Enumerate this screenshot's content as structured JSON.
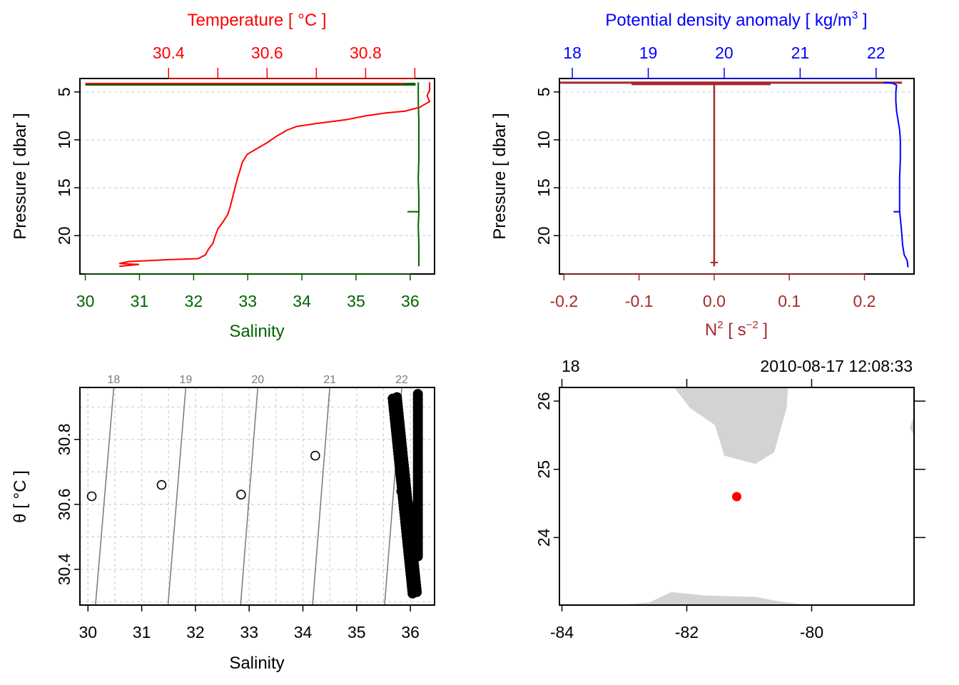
{
  "colors": {
    "temperature": "#ff0000",
    "salinity": "#006400",
    "density": "#0000ff",
    "n2": "#a52a2a",
    "land": "#d3d3d3",
    "station": "#ff0000",
    "isopycnal": "#808080"
  },
  "chart_data": [
    {
      "id": "ts_profile",
      "type": "line",
      "top_axis": {
        "title": "Temperature [ °C ]",
        "ticks": [
          "30.4",
          "30.6",
          "30.8"
        ],
        "tick_values": [
          30.4,
          30.5,
          30.6,
          30.7,
          30.8,
          30.9
        ],
        "range": [
          30.22,
          30.94
        ]
      },
      "bottom_axis": {
        "title": "Salinity",
        "ticks": [
          "30",
          "31",
          "32",
          "33",
          "34",
          "35",
          "36"
        ],
        "range": [
          29.9,
          36.45
        ]
      },
      "left_axis": {
        "title": "Pressure [ dbar ]",
        "ticks": [
          "5",
          "10",
          "15",
          "20"
        ],
        "range": [
          3.6,
          24.0
        ],
        "reversed": true
      },
      "series": [
        {
          "name": "Temperature",
          "points": [
            [
              30.93,
              4.0
            ],
            [
              30.93,
              4.8
            ],
            [
              30.925,
              5.4
            ],
            [
              30.93,
              6.0
            ],
            [
              30.91,
              6.6
            ],
            [
              30.88,
              7.0
            ],
            [
              30.84,
              7.2
            ],
            [
              30.8,
              7.5
            ],
            [
              30.76,
              7.9
            ],
            [
              30.7,
              8.3
            ],
            [
              30.66,
              8.6
            ],
            [
              30.64,
              9.0
            ],
            [
              30.62,
              9.6
            ],
            [
              30.6,
              10.3
            ],
            [
              30.58,
              10.9
            ],
            [
              30.56,
              11.5
            ],
            [
              30.55,
              12.3
            ],
            [
              30.545,
              13.2
            ],
            [
              30.54,
              14.0
            ],
            [
              30.535,
              15.0
            ],
            [
              30.53,
              16.0
            ],
            [
              30.525,
              17.0
            ],
            [
              30.52,
              17.8
            ],
            [
              30.51,
              18.6
            ],
            [
              30.5,
              19.3
            ],
            [
              30.495,
              20.0
            ],
            [
              30.49,
              20.8
            ],
            [
              30.48,
              21.5
            ],
            [
              30.475,
              22.0
            ],
            [
              30.46,
              22.4
            ],
            [
              30.4,
              22.5
            ],
            [
              30.36,
              22.6
            ],
            [
              30.32,
              22.7
            ],
            [
              30.3,
              22.9
            ],
            [
              30.34,
              23.0
            ],
            [
              30.3,
              23.2
            ]
          ]
        },
        {
          "name": "Salinity",
          "points": [
            [
              36.15,
              4.0
            ],
            [
              36.15,
              6.0
            ],
            [
              36.16,
              8.0
            ],
            [
              36.16,
              10.0
            ],
            [
              36.16,
              12.0
            ],
            [
              36.15,
              14.0
            ],
            [
              36.16,
              16.0
            ],
            [
              36.16,
              17.5
            ],
            [
              36.15,
              19.0
            ],
            [
              36.16,
              21.0
            ],
            [
              36.16,
              23.2
            ]
          ]
        }
      ]
    },
    {
      "id": "density_n2_profile",
      "type": "line",
      "top_axis": {
        "title": "Potential density anomaly [ kg/m",
        "title_sup": "3",
        "title_end": " ]",
        "ticks": [
          "18",
          "19",
          "20",
          "21",
          "22"
        ],
        "tick_values": [
          18,
          19,
          20,
          21,
          22
        ],
        "range": [
          17.83,
          22.5
        ]
      },
      "bottom_axis": {
        "title": "N",
        "title_sup": "2",
        "title_mid": " [ s",
        "title_sup2": "−2",
        "title_end": " ]",
        "ticks": [
          "-0.2",
          "-0.1",
          "0.0",
          "0.1",
          "0.2"
        ],
        "tick_values": [
          -0.2,
          -0.1,
          0.0,
          0.1,
          0.2
        ],
        "range": [
          -0.206,
          0.266
        ]
      },
      "left_axis": {
        "title": "Pressure [ dbar ]",
        "ticks": [
          "5",
          "10",
          "15",
          "20"
        ],
        "range": [
          3.6,
          24.0
        ],
        "reversed": true
      },
      "series": [
        {
          "name": "Potential density anomaly",
          "points": [
            [
              22.1,
              4.0
            ],
            [
              22.22,
              4.1
            ],
            [
              22.27,
              4.3
            ],
            [
              22.26,
              5.0
            ],
            [
              22.26,
              6.0
            ],
            [
              22.27,
              7.0
            ],
            [
              22.29,
              8.0
            ],
            [
              22.31,
              9.0
            ],
            [
              22.32,
              10.0
            ],
            [
              22.32,
              12.0
            ],
            [
              22.31,
              14.0
            ],
            [
              22.31,
              16.0
            ],
            [
              22.31,
              17.5
            ],
            [
              22.33,
              19.0
            ],
            [
              22.34,
              20.0
            ],
            [
              22.35,
              21.0
            ],
            [
              22.37,
              22.0
            ],
            [
              22.41,
              22.6
            ],
            [
              22.42,
              23.3
            ]
          ]
        },
        {
          "name": "N2",
          "points": [
            [
              -0.2,
              4.0
            ],
            [
              0.25,
              4.0
            ],
            [
              0.0,
              4.1
            ],
            [
              0.0,
              6.0
            ],
            [
              0.0,
              8.0
            ],
            [
              0.0,
              10.0
            ],
            [
              0.0,
              12.0
            ],
            [
              0.0,
              14.0
            ],
            [
              0.0,
              16.0
            ],
            [
              0.0,
              18.0
            ],
            [
              0.0,
              20.0
            ],
            [
              0.0,
              22.0
            ],
            [
              0.0,
              23.2
            ]
          ]
        }
      ]
    },
    {
      "id": "ts_diagram",
      "type": "scatter",
      "bottom_axis": {
        "title": "Salinity",
        "ticks": [
          "30",
          "31",
          "32",
          "33",
          "34",
          "35",
          "36"
        ],
        "range": [
          29.85,
          36.45
        ]
      },
      "left_axis": {
        "title": "θ [ °C ]",
        "ticks": [
          "30.4",
          "30.6",
          "30.8"
        ],
        "tick_values": [
          30.4,
          30.6,
          30.8
        ],
        "range": [
          30.29,
          30.96
        ]
      },
      "isopycnals": [
        {
          "label": "18",
          "s_top": 30.48,
          "s_bottom": 30.14
        },
        {
          "label": "19",
          "s_top": 31.82,
          "s_bottom": 31.49
        },
        {
          "label": "20",
          "s_top": 33.16,
          "s_bottom": 32.84
        },
        {
          "label": "21",
          "s_top": 34.5,
          "s_bottom": 34.18
        },
        {
          "label": "22",
          "s_top": 35.84,
          "s_bottom": 35.52
        }
      ],
      "scattered_points": [
        [
          30.07,
          30.625
        ],
        [
          31.37,
          30.66
        ],
        [
          32.85,
          30.63
        ],
        [
          34.23,
          30.75
        ],
        [
          35.83,
          30.64
        ],
        [
          35.92,
          30.62
        ],
        [
          36.02,
          30.55
        ],
        [
          35.98,
          30.5
        ],
        [
          36.1,
          30.52
        ],
        [
          36.05,
          30.58
        ],
        [
          36.12,
          30.6
        ]
      ],
      "dense_band_1": {
        "s_start": 35.75,
        "t_start": 30.93,
        "s_end": 36.12,
        "t_end": 30.33
      },
      "dense_band_2": {
        "s_start": 36.14,
        "t_start": 30.94,
        "s_end": 36.14,
        "t_end": 30.44
      }
    },
    {
      "id": "station_map",
      "type": "map",
      "corner_labels": {
        "left": "18",
        "right": "2010-08-17 12:08:33"
      },
      "bottom_axis": {
        "ticks": [
          "-84",
          "-82",
          "-80"
        ],
        "tick_values": [
          -84,
          -82,
          -80
        ],
        "range": [
          -84.04,
          -78.36
        ]
      },
      "left_axis": {
        "ticks": [
          "24",
          "25",
          "26"
        ],
        "tick_values": [
          24,
          25,
          26
        ],
        "range": [
          23.01,
          26.2
        ]
      },
      "top_axis": {
        "tick_values": [
          -84,
          -82,
          -80
        ]
      },
      "right_axis": {
        "tick_values": [
          24,
          25,
          26
        ]
      },
      "land": [
        [
          [
            -82.2,
            26.2
          ],
          [
            -81.95,
            25.9
          ],
          [
            -81.55,
            25.65
          ],
          [
            -81.4,
            25.2
          ],
          [
            -80.9,
            25.08
          ],
          [
            -80.6,
            25.25
          ],
          [
            -80.4,
            25.9
          ],
          [
            -80.38,
            26.2
          ]
        ],
        [
          [
            -84.04,
            23.01
          ],
          [
            -83.0,
            23.02
          ],
          [
            -82.6,
            23.05
          ],
          [
            -82.25,
            23.2
          ],
          [
            -81.7,
            23.15
          ],
          [
            -80.9,
            23.13
          ],
          [
            -80.5,
            23.06
          ],
          [
            -80.0,
            23.01
          ]
        ],
        [
          [
            -78.36,
            25.8
          ],
          [
            -78.43,
            25.6
          ],
          [
            -78.36,
            25.5
          ]
        ]
      ],
      "station": {
        "lon": -81.2,
        "lat": 24.6
      }
    }
  ]
}
